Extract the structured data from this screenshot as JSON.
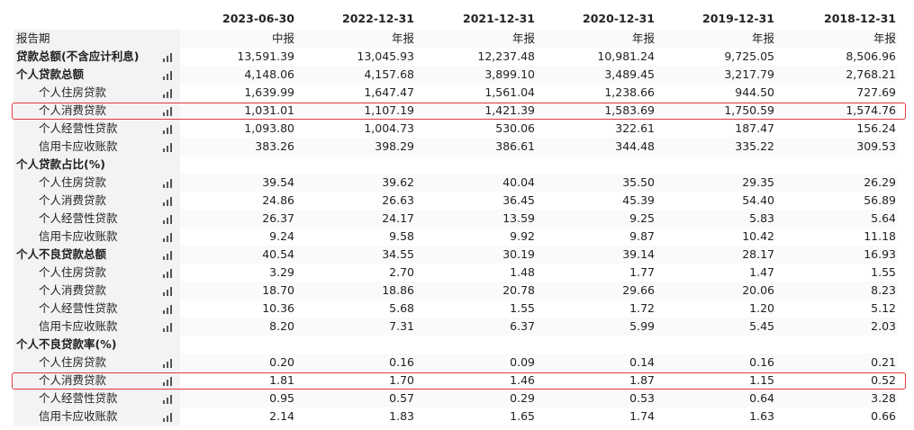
{
  "table": {
    "columns": [
      "2023-06-30",
      "2022-12-31",
      "2021-12-31",
      "2020-12-31",
      "2019-12-31",
      "2018-12-31"
    ],
    "rows": [
      {
        "label": "报告期",
        "values": [
          "中报",
          "年报",
          "年报",
          "年报",
          "年报",
          "年报"
        ]
      },
      {
        "label": "贷款总额(不含应计利息)",
        "values": [
          "13,591.39",
          "13,045.93",
          "12,237.48",
          "10,981.24",
          "9,725.05",
          "8,506.96"
        ]
      },
      {
        "label": "个人贷款总额",
        "values": [
          "4,148.06",
          "4,157.68",
          "3,899.10",
          "3,489.45",
          "3,217.79",
          "2,768.21"
        ]
      },
      {
        "label": "个人住房贷款",
        "values": [
          "1,639.99",
          "1,647.47",
          "1,561.04",
          "1,238.66",
          "944.50",
          "727.69"
        ]
      },
      {
        "label": "个人消费贷款",
        "values": [
          "1,031.01",
          "1,107.19",
          "1,421.39",
          "1,583.69",
          "1,750.59",
          "1,574.76"
        ]
      },
      {
        "label": "个人经营性贷款",
        "values": [
          "1,093.80",
          "1,004.73",
          "530.06",
          "322.61",
          "187.47",
          "156.24"
        ]
      },
      {
        "label": "信用卡应收账款",
        "values": [
          "383.26",
          "398.29",
          "386.61",
          "344.48",
          "335.22",
          "309.53"
        ]
      },
      {
        "label": "个人贷款占比(%)",
        "values": []
      },
      {
        "label": "个人住房贷款",
        "values": [
          "39.54",
          "39.62",
          "40.04",
          "35.50",
          "29.35",
          "26.29"
        ]
      },
      {
        "label": "个人消费贷款",
        "values": [
          "24.86",
          "26.63",
          "36.45",
          "45.39",
          "54.40",
          "56.89"
        ]
      },
      {
        "label": "个人经营性贷款",
        "values": [
          "26.37",
          "24.17",
          "13.59",
          "9.25",
          "5.83",
          "5.64"
        ]
      },
      {
        "label": "信用卡应收账款",
        "values": [
          "9.24",
          "9.58",
          "9.92",
          "9.87",
          "10.42",
          "11.18"
        ]
      },
      {
        "label": "个人不良贷款总额",
        "values": [
          "40.54",
          "34.55",
          "30.19",
          "39.14",
          "28.17",
          "16.93"
        ]
      },
      {
        "label": "个人住房贷款",
        "values": [
          "3.29",
          "2.70",
          "1.48",
          "1.77",
          "1.47",
          "1.55"
        ]
      },
      {
        "label": "个人消费贷款",
        "values": [
          "18.70",
          "18.86",
          "20.78",
          "29.66",
          "20.06",
          "8.23"
        ]
      },
      {
        "label": "个人经营性贷款",
        "values": [
          "10.36",
          "5.68",
          "1.55",
          "1.72",
          "1.20",
          "5.12"
        ]
      },
      {
        "label": "信用卡应收账款",
        "values": [
          "8.20",
          "7.31",
          "6.37",
          "5.99",
          "5.45",
          "2.03"
        ]
      },
      {
        "label": "个人不良贷款率(%)",
        "values": []
      },
      {
        "label": "个人住房贷款",
        "values": [
          "0.20",
          "0.16",
          "0.09",
          "0.14",
          "0.16",
          "0.21"
        ]
      },
      {
        "label": "个人消费贷款",
        "values": [
          "1.81",
          "1.70",
          "1.46",
          "1.87",
          "1.15",
          "0.52"
        ]
      },
      {
        "label": "个人经营性贷款",
        "values": [
          "0.95",
          "0.57",
          "0.29",
          "0.53",
          "0.64",
          "3.28"
        ]
      },
      {
        "label": "信用卡应收账款",
        "values": [
          "2.14",
          "1.83",
          "1.65",
          "1.74",
          "1.63",
          "0.66"
        ]
      }
    ]
  }
}
